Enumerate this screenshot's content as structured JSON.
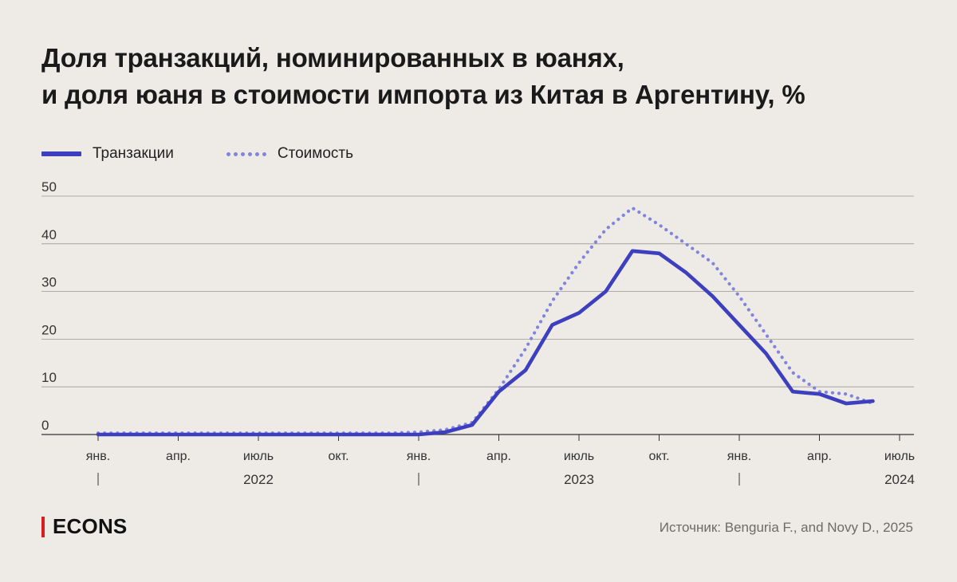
{
  "title": {
    "line1": "Доля транзакций, номинированных в юанях,",
    "line2": "и доля юаня в стоимости импорта из Китая в Аргентину, %"
  },
  "legend": [
    {
      "label": "Транзакции",
      "style": "solid",
      "color": "#3d3fbf"
    },
    {
      "label": "Стоимость",
      "style": "dotted",
      "color": "#8184dc"
    }
  ],
  "brand": "ECONS",
  "source": "Источник: Benguria F., and Novy D., 2025",
  "chart_data": {
    "type": "line",
    "title": "Доля транзакций, номинированных в юанях, и доля юаня в стоимости импорта из Китая в Аргентину, %",
    "x_months": [
      0,
      1,
      2,
      3,
      4,
      5,
      6,
      7,
      8,
      9,
      10,
      11,
      12,
      13,
      14,
      15,
      16,
      17,
      18,
      19,
      20,
      21,
      22,
      23,
      24,
      25,
      26,
      27,
      28,
      29
    ],
    "series": [
      {
        "name": "Транзакции",
        "style": "solid",
        "values": [
          0,
          0,
          0,
          0,
          0,
          0,
          0,
          0,
          0,
          0,
          0,
          0,
          0,
          0.5,
          2,
          9,
          13.5,
          23,
          25.5,
          30,
          38.5,
          38,
          34,
          29,
          23,
          17,
          9,
          8.5,
          6.5,
          7
        ]
      },
      {
        "name": "Стоимость",
        "style": "dotted",
        "values": [
          0.3,
          0.3,
          0.3,
          0.3,
          0.3,
          0.3,
          0.3,
          0.3,
          0.3,
          0.3,
          0.3,
          0.3,
          0.5,
          1,
          2.5,
          9.5,
          18,
          28,
          36,
          43,
          47.5,
          44,
          40,
          36,
          29,
          21,
          13,
          9,
          8.5,
          6.5
        ]
      }
    ],
    "yticks": [
      0,
      10,
      20,
      30,
      40,
      50
    ],
    "ylim": [
      0,
      50
    ],
    "x_tick_positions": [
      0,
      3,
      6,
      9,
      12,
      15,
      18,
      21,
      24,
      27,
      30
    ],
    "x_tick_labels": [
      "янв.",
      "апр.",
      "июль",
      "окт.",
      "янв.",
      "апр.",
      "июль",
      "окт.",
      "янв.",
      "апр.",
      "июль"
    ],
    "year_labels": [
      "2022",
      "2023",
      "2024"
    ],
    "year_positions": [
      6,
      18,
      30
    ],
    "year_separators": [
      0,
      12,
      24
    ],
    "grid": true,
    "xlim": [
      -1,
      31
    ],
    "legend_position": "top-left"
  }
}
